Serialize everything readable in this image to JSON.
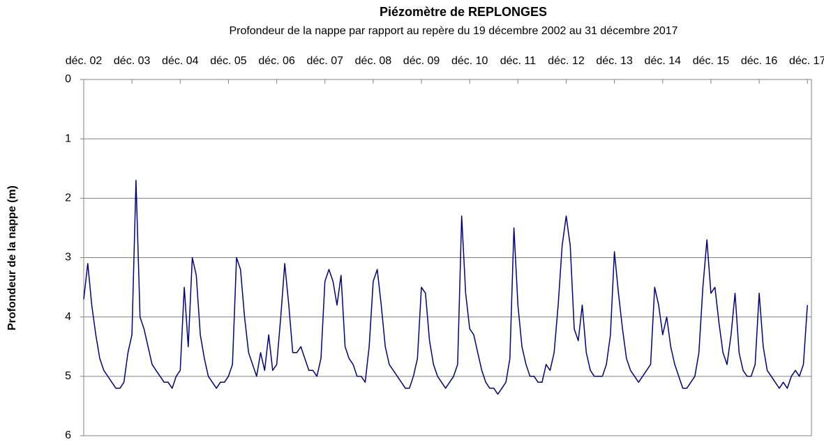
{
  "chart_data": {
    "type": "line",
    "title": "Piézomètre de REPLONGES",
    "subtitle": "Profondeur de la nappe par rapport au repère du 19 décembre 2002 au 31 décembre 2017",
    "y_label": "Profondeur de la nappe (m)",
    "invert_y": true,
    "grid": true,
    "x_axis_position": "top",
    "xlim": [
      "2002-12",
      "2018-01"
    ],
    "xticks": [
      {
        "value": "2002-12",
        "label": "déc. 02"
      },
      {
        "value": "2003-12",
        "label": "déc. 03"
      },
      {
        "value": "2004-12",
        "label": "déc. 04"
      },
      {
        "value": "2005-12",
        "label": "déc. 05"
      },
      {
        "value": "2006-12",
        "label": "déc. 06"
      },
      {
        "value": "2007-12",
        "label": "déc. 07"
      },
      {
        "value": "2008-12",
        "label": "déc. 08"
      },
      {
        "value": "2009-12",
        "label": "déc. 09"
      },
      {
        "value": "2010-12",
        "label": "déc. 10"
      },
      {
        "value": "2011-12",
        "label": "déc. 11"
      },
      {
        "value": "2012-12",
        "label": "déc. 12"
      },
      {
        "value": "2013-12",
        "label": "déc. 13"
      },
      {
        "value": "2014-12",
        "label": "déc. 14"
      },
      {
        "value": "2015-12",
        "label": "déc. 15"
      },
      {
        "value": "2016-12",
        "label": "déc. 16"
      },
      {
        "value": "2017-12",
        "label": "déc. 17"
      }
    ],
    "ylim": [
      0,
      6
    ],
    "yticks": [
      0,
      1,
      2,
      3,
      4,
      5,
      6
    ],
    "x": [
      "2002-12",
      "2003-01",
      "2003-02",
      "2003-03",
      "2003-04",
      "2003-05",
      "2003-06",
      "2003-07",
      "2003-08",
      "2003-09",
      "2003-10",
      "2003-11",
      "2003-12",
      "2004-01",
      "2004-02",
      "2004-03",
      "2004-04",
      "2004-05",
      "2004-06",
      "2004-07",
      "2004-08",
      "2004-09",
      "2004-10",
      "2004-11",
      "2004-12",
      "2005-01",
      "2005-02",
      "2005-03",
      "2005-04",
      "2005-05",
      "2005-06",
      "2005-07",
      "2005-08",
      "2005-09",
      "2005-10",
      "2005-11",
      "2005-12",
      "2006-01",
      "2006-02",
      "2006-03",
      "2006-04",
      "2006-05",
      "2006-06",
      "2006-07",
      "2006-08",
      "2006-09",
      "2006-10",
      "2006-11",
      "2006-12",
      "2007-01",
      "2007-02",
      "2007-03",
      "2007-04",
      "2007-05",
      "2007-06",
      "2007-07",
      "2007-08",
      "2007-09",
      "2007-10",
      "2007-11",
      "2007-12",
      "2008-01",
      "2008-02",
      "2008-03",
      "2008-04",
      "2008-05",
      "2008-06",
      "2008-07",
      "2008-08",
      "2008-09",
      "2008-10",
      "2008-11",
      "2008-12",
      "2009-01",
      "2009-02",
      "2009-03",
      "2009-04",
      "2009-05",
      "2009-06",
      "2009-07",
      "2009-08",
      "2009-09",
      "2009-10",
      "2009-11",
      "2009-12",
      "2010-01",
      "2010-02",
      "2010-03",
      "2010-04",
      "2010-05",
      "2010-06",
      "2010-07",
      "2010-08",
      "2010-09",
      "2010-10",
      "2010-11",
      "2010-12",
      "2011-01",
      "2011-02",
      "2011-03",
      "2011-04",
      "2011-05",
      "2011-06",
      "2011-07",
      "2011-08",
      "2011-09",
      "2011-10",
      "2011-11",
      "2011-12",
      "2012-01",
      "2012-02",
      "2012-03",
      "2012-04",
      "2012-05",
      "2012-06",
      "2012-07",
      "2012-08",
      "2012-09",
      "2012-10",
      "2012-11",
      "2012-12",
      "2013-01",
      "2013-02",
      "2013-03",
      "2013-04",
      "2013-05",
      "2013-06",
      "2013-07",
      "2013-08",
      "2013-09",
      "2013-10",
      "2013-11",
      "2013-12",
      "2014-01",
      "2014-02",
      "2014-03",
      "2014-04",
      "2014-05",
      "2014-06",
      "2014-07",
      "2014-08",
      "2014-09",
      "2014-10",
      "2014-11",
      "2014-12",
      "2015-01",
      "2015-02",
      "2015-03",
      "2015-04",
      "2015-05",
      "2015-06",
      "2015-07",
      "2015-08",
      "2015-09",
      "2015-10",
      "2015-11",
      "2015-12",
      "2016-01",
      "2016-02",
      "2016-03",
      "2016-04",
      "2016-05",
      "2016-06",
      "2016-07",
      "2016-08",
      "2016-09",
      "2016-10",
      "2016-11",
      "2016-12",
      "2017-01",
      "2017-02",
      "2017-03",
      "2017-04",
      "2017-05",
      "2017-06",
      "2017-07",
      "2017-08",
      "2017-09",
      "2017-10",
      "2017-11",
      "2017-12"
    ],
    "series": [
      {
        "color": "#000080",
        "values": [
          3.7,
          3.1,
          3.8,
          4.3,
          4.7,
          4.9,
          5.0,
          5.1,
          5.2,
          5.2,
          5.1,
          4.6,
          4.3,
          1.7,
          4.0,
          4.2,
          4.5,
          4.8,
          4.9,
          5.0,
          5.1,
          5.1,
          5.2,
          5.0,
          4.9,
          3.5,
          4.5,
          3.0,
          3.3,
          4.3,
          4.7,
          5.0,
          5.1,
          5.2,
          5.1,
          5.1,
          5.0,
          4.8,
          3.0,
          3.2,
          4.0,
          4.6,
          4.8,
          5.0,
          4.6,
          4.9,
          4.3,
          4.9,
          4.8,
          4.0,
          3.1,
          3.8,
          4.6,
          4.6,
          4.5,
          4.7,
          4.9,
          4.9,
          5.0,
          4.7,
          3.4,
          3.2,
          3.4,
          3.8,
          3.3,
          4.5,
          4.7,
          4.8,
          5.0,
          5.0,
          5.1,
          4.5,
          3.4,
          3.2,
          3.8,
          4.5,
          4.8,
          4.9,
          5.0,
          5.1,
          5.2,
          5.2,
          5.0,
          4.7,
          3.5,
          3.6,
          4.4,
          4.8,
          5.0,
          5.1,
          5.2,
          5.1,
          5.0,
          4.8,
          2.3,
          3.6,
          4.2,
          4.3,
          4.6,
          4.9,
          5.1,
          5.2,
          5.2,
          5.3,
          5.2,
          5.1,
          4.7,
          2.5,
          3.8,
          4.5,
          4.8,
          5.0,
          5.0,
          5.1,
          5.1,
          4.8,
          4.9,
          4.6,
          3.8,
          2.8,
          2.3,
          2.8,
          4.2,
          4.4,
          3.8,
          4.6,
          4.9,
          5.0,
          5.0,
          5.0,
          4.8,
          4.3,
          2.9,
          3.6,
          4.2,
          4.7,
          4.9,
          5.0,
          5.1,
          5.0,
          4.9,
          4.8,
          3.5,
          3.8,
          4.3,
          4.0,
          4.5,
          4.8,
          5.0,
          5.2,
          5.2,
          5.1,
          5.0,
          4.6,
          3.5,
          2.7,
          3.6,
          3.5,
          4.1,
          4.6,
          4.8,
          4.3,
          3.6,
          4.6,
          4.9,
          5.0,
          5.0,
          4.8,
          3.6,
          4.5,
          4.9,
          5.0,
          5.1,
          5.2,
          5.1,
          5.2,
          5.0,
          4.9,
          5.0,
          4.8,
          3.8
        ]
      }
    ]
  }
}
